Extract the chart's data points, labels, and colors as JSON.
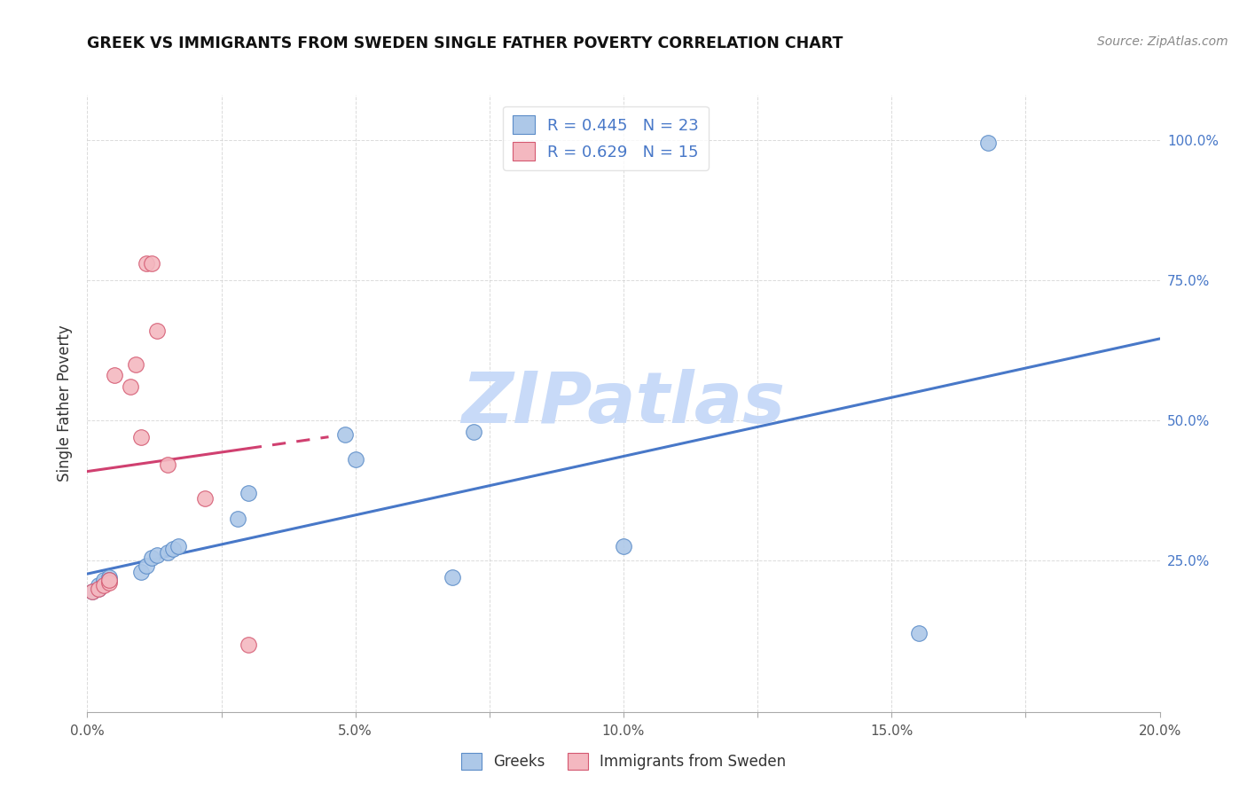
{
  "title": "GREEK VS IMMIGRANTS FROM SWEDEN SINGLE FATHER POVERTY CORRELATION CHART",
  "source": "Source: ZipAtlas.com",
  "ylabel": "Single Father Poverty",
  "xlim": [
    0.0,
    0.2
  ],
  "ylim": [
    -0.02,
    1.08
  ],
  "ytick_positions": [
    0.25,
    0.5,
    0.75,
    1.0
  ],
  "ytick_labels_right": [
    "25.0%",
    "50.0%",
    "75.0%",
    "100.0%"
  ],
  "greeks_x": [
    0.001,
    0.002,
    0.002,
    0.003,
    0.003,
    0.004,
    0.004,
    0.01,
    0.011,
    0.012,
    0.013,
    0.015,
    0.016,
    0.017,
    0.028,
    0.03,
    0.048,
    0.05,
    0.068,
    0.072,
    0.1,
    0.155,
    0.168
  ],
  "greeks_y": [
    0.195,
    0.2,
    0.205,
    0.21,
    0.215,
    0.22,
    0.215,
    0.23,
    0.24,
    0.255,
    0.26,
    0.265,
    0.27,
    0.275,
    0.325,
    0.37,
    0.475,
    0.43,
    0.22,
    0.48,
    0.275,
    0.12,
    0.995
  ],
  "sweden_x": [
    0.001,
    0.002,
    0.003,
    0.004,
    0.004,
    0.005,
    0.008,
    0.009,
    0.01,
    0.011,
    0.012,
    0.013,
    0.015,
    0.022,
    0.03
  ],
  "sweden_y": [
    0.195,
    0.2,
    0.205,
    0.21,
    0.215,
    0.58,
    0.56,
    0.6,
    0.47,
    0.78,
    0.78,
    0.66,
    0.42,
    0.36,
    0.1
  ],
  "greeks_R": 0.445,
  "greeks_N": 23,
  "sweden_R": 0.629,
  "sweden_N": 15,
  "blue_fill": "#adc8e8",
  "blue_edge": "#5b8cc8",
  "pink_fill": "#f4b8c0",
  "pink_edge": "#d45870",
  "blue_line": "#4878c8",
  "pink_line": "#d04070",
  "watermark_color": "#c8daf8",
  "background_color": "#ffffff",
  "grid_color": "#cccccc",
  "title_color": "#111111",
  "source_color": "#888888",
  "axis_label_color": "#333333",
  "tick_color": "#555555",
  "right_tick_color": "#4878c8",
  "legend_text_color": "#4878c8"
}
